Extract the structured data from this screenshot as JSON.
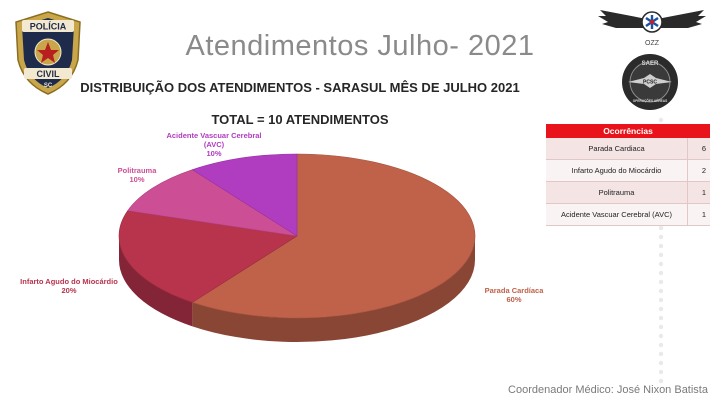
{
  "slide": {
    "title": "Atendimentos Julho- 2021",
    "footer": "Coordenador Médico: José Nixon Batista"
  },
  "logos": {
    "badge_top": "POLÍCIA",
    "badge_bottom": "CIVIL",
    "badge_state": "SC",
    "ozz": "OZZ",
    "saer_top": "SAER",
    "saer_mid": "PCSC",
    "saer_bottom": "OPERAÇÕES AÉREAS"
  },
  "table": {
    "header": "Ocorrências",
    "rows": [
      {
        "name": "Parada Cardiaca",
        "value": "6"
      },
      {
        "name": "Infarto Agudo do Miocárdio",
        "value": "2"
      },
      {
        "name": "Politrauma",
        "value": "1"
      },
      {
        "name": "Acidente Vascuar Cerebral (AVC)",
        "value": "1"
      }
    ]
  },
  "chart_data": {
    "type": "pie",
    "title": "DISTRIBUIÇÃO DOS ATENDIMENTOS  - SARASUL MÊS DE JULHO 2021",
    "subtitle": "TOTAL = 10 ATENDIMENTOS",
    "slices": [
      {
        "label": "Parada Cardíaca",
        "value": 60,
        "percent": "60%",
        "color": "#c0614a"
      },
      {
        "label": "Infarto Agudo do Miocárdio",
        "value": 20,
        "percent": "20%",
        "color": "#b8344c"
      },
      {
        "label": "Politrauma",
        "value": 10,
        "percent": "10%",
        "color": "#cc4f96"
      },
      {
        "label": "Acidente Vascuar Cerebral (AVC)",
        "value": 10,
        "percent": "10%",
        "color": "#b03cbf"
      }
    ]
  }
}
